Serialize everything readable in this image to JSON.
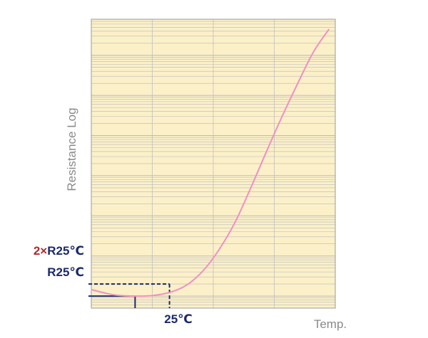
{
  "chart_data": {
    "type": "line",
    "title": "",
    "xlabel": "Temp.",
    "ylabel": "Resistance Log",
    "yscale": "log",
    "grid": true,
    "colors": {
      "plot_background": "#fbf0c8",
      "grid_line": "#b9b9b9",
      "curve": "#f08fc4",
      "reference_line": "#1a2a6c",
      "multiplier_text": "#b02a2a"
    },
    "x_tick_label": "25℃",
    "reference_labels": {
      "double_multiplier": "2",
      "double_cross": "×",
      "double_value": "R25℃",
      "single": "R25℃"
    },
    "series": [
      {
        "points": [
          {
            "x": 0.0,
            "y": 1.45
          },
          {
            "x": 0.35,
            "y": 1.08
          },
          {
            "x": 0.7,
            "y": 1.0
          },
          {
            "x": 1.0,
            "y": 1.04
          },
          {
            "x": 1.3,
            "y": 1.3
          },
          {
            "x": 1.55,
            "y": 2.0
          },
          {
            "x": 1.8,
            "y": 4.5
          },
          {
            "x": 2.05,
            "y": 15
          },
          {
            "x": 2.3,
            "y": 70
          },
          {
            "x": 2.55,
            "y": 500
          },
          {
            "x": 2.8,
            "y": 4000
          },
          {
            "x": 3.05,
            "y": 30000
          },
          {
            "x": 3.3,
            "y": 200000
          },
          {
            "x": 3.55,
            "y": 1200000
          },
          {
            "x": 3.8,
            "y": 4500000
          }
        ]
      }
    ],
    "reference_points": {
      "r25": {
        "x": 0.7,
        "y": 1.0
      },
      "double_r25": {
        "x": 1.25,
        "y": 2.0
      }
    }
  }
}
